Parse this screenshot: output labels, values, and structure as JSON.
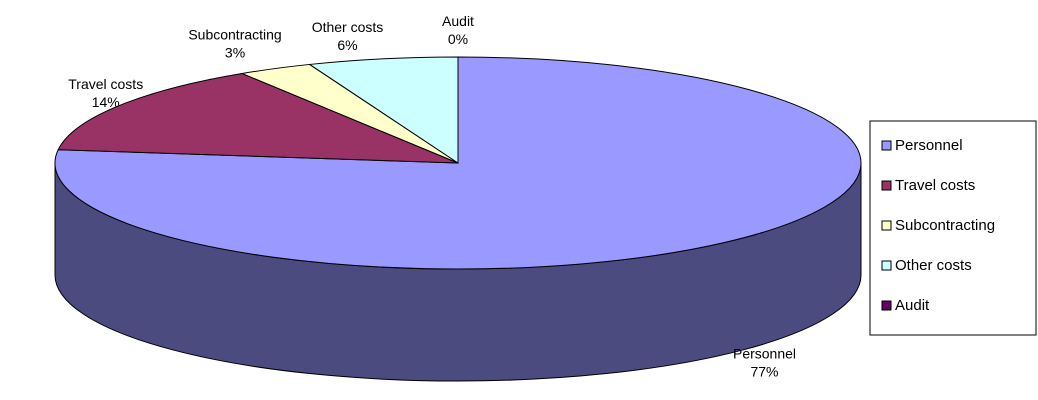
{
  "chart_data": {
    "type": "pie",
    "style": "3d",
    "title": "",
    "legend_position": "right",
    "slices": [
      {
        "name": "Personnel",
        "value": 77,
        "label": "77%",
        "color": "#9999ff",
        "side_color": "#4b4b7f"
      },
      {
        "name": "Travel costs",
        "value": 14,
        "label": "14%",
        "color": "#993366",
        "side_color": "#4c1933"
      },
      {
        "name": "Subcontracting",
        "value": 3,
        "label": "3%",
        "color": "#ffffcc",
        "side_color": "#7f7f66"
      },
      {
        "name": "Other costs",
        "value": 6,
        "label": "6%",
        "color": "#ccffff",
        "side_color": "#667f7f"
      },
      {
        "name": "Audit",
        "value": 0,
        "label": "0%",
        "color": "#660066",
        "side_color": "#330033"
      }
    ]
  }
}
